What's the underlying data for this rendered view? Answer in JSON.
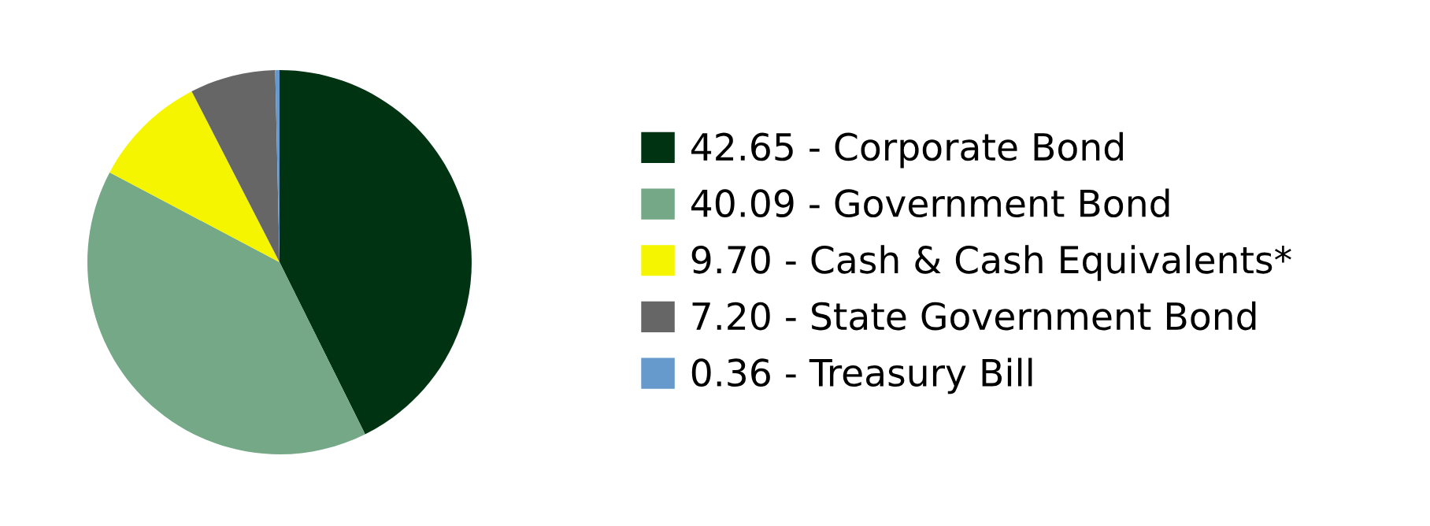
{
  "chart_data": {
    "type": "pie",
    "categories": [
      "42.65 - Corporate Bond",
      "40.09 - Government Bond",
      "9.70 - Cash & Cash Equivalents*",
      "7.20 - State Government Bond",
      "0.36 - Treasury Bill"
    ],
    "values": [
      42.65,
      40.09,
      9.7,
      7.2,
      0.36
    ],
    "colors": [
      "#003311",
      "#74a886",
      "#f5f500",
      "#666666",
      "#6699cc"
    ],
    "legend": "right"
  }
}
